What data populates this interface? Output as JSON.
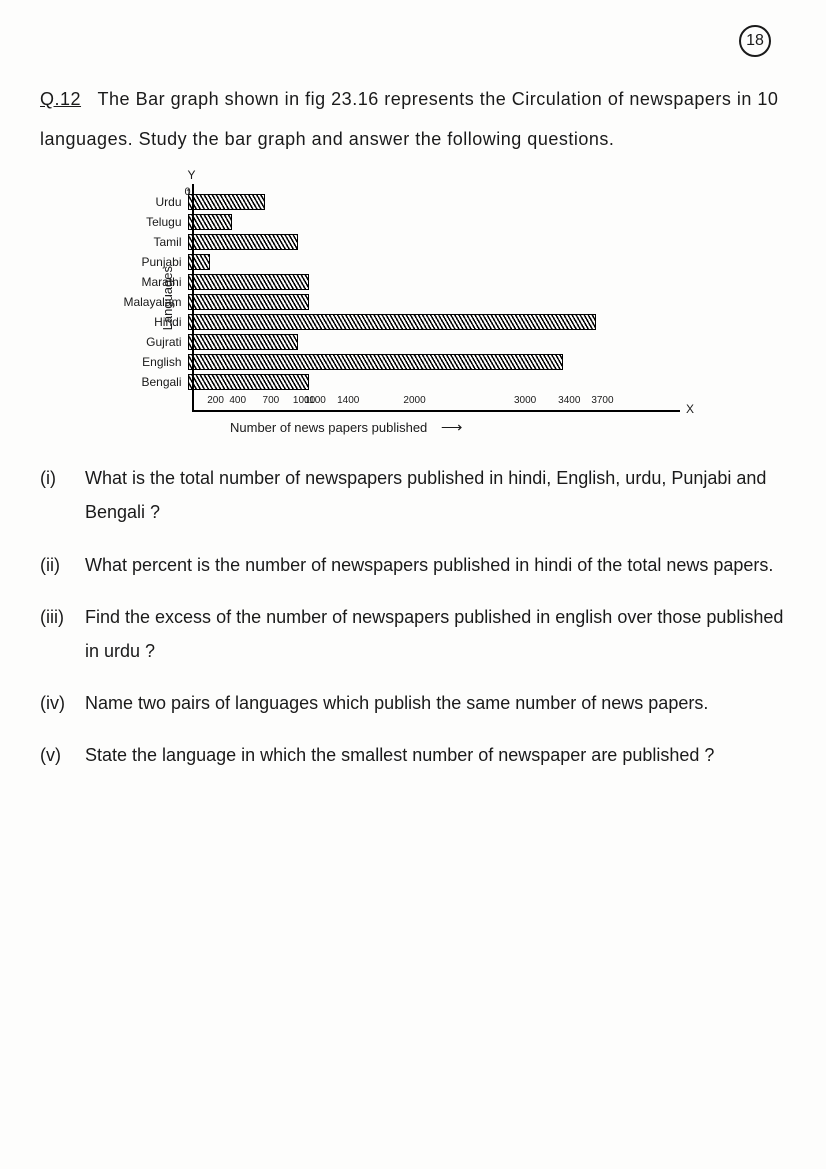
{
  "page_number": "18",
  "header": {
    "q_label": "Q.12",
    "text": "The Bar graph shown in fig 23.16 represents the Circulation of newspapers in 10 languages. Study the bar graph and answer the following questions."
  },
  "chart": {
    "type": "bar-horizontal",
    "y_axis_label": "Languages",
    "y_marker": "Y",
    "x_marker": "X",
    "x_origin": "0",
    "x_axis_label": "Number of news papers published",
    "x_max": 3800,
    "categories": [
      "Urdu",
      "Telugu",
      "Tamil",
      "Punjabi",
      "Marathi",
      "Malayalam",
      "Hindi",
      "Gujrati",
      "English",
      "Bengali"
    ],
    "values": [
      700,
      400,
      1000,
      200,
      1100,
      1100,
      3700,
      1000,
      3400,
      1100
    ],
    "bar_border_color": "#000000",
    "hatch_color": "#000000",
    "background_color": "#fdfdfc",
    "x_ticks": [
      200,
      400,
      700,
      1000,
      1100,
      1400,
      2000,
      3000,
      3400,
      3700
    ],
    "label_fontsize": 12,
    "axis_label_fontsize": 13
  },
  "questions": [
    {
      "num": "(i)",
      "text": "What is the total number of newspapers published in hindi, English, urdu, Punjabi and Bengali ?"
    },
    {
      "num": "(ii)",
      "text": "What percent is the number of newspapers published in hindi of the total news papers."
    },
    {
      "num": "(iii)",
      "text": "Find the excess of the number of newspapers published in english over those published in urdu ?"
    },
    {
      "num": "(iv)",
      "text": "Name two pairs of languages which publish the same number of news papers."
    },
    {
      "num": "(v)",
      "text": "State the language in which the smallest number of newspaper are published ?"
    }
  ]
}
